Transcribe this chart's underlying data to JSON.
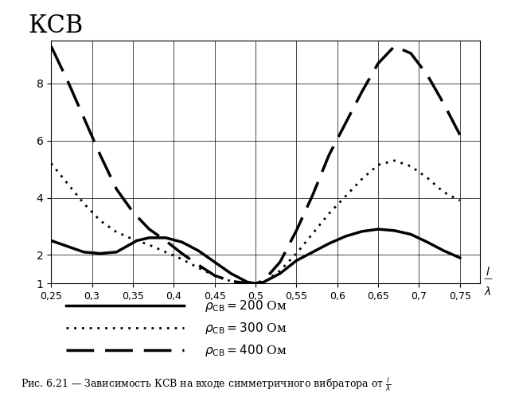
{
  "title": "КСВ",
  "xlim": [
    0.25,
    0.775
  ],
  "ylim": [
    1.0,
    9.5
  ],
  "xticks": [
    0.25,
    0.3,
    0.35,
    0.4,
    0.45,
    0.5,
    0.55,
    0.6,
    0.65,
    0.7,
    0.75
  ],
  "xtick_labels": [
    "0,25",
    "0,3",
    "0,35",
    "0,4",
    "0,45",
    "0,5",
    "0,55",
    "0,6",
    "0,65",
    "0,7",
    "0,75"
  ],
  "yticks": [
    1,
    2,
    4,
    6,
    8
  ],
  "background_color": "#ffffff",
  "curves": {
    "rho200": {
      "x": [
        0.25,
        0.27,
        0.29,
        0.31,
        0.33,
        0.355,
        0.37,
        0.39,
        0.41,
        0.43,
        0.45,
        0.47,
        0.49,
        0.5,
        0.51,
        0.53,
        0.55,
        0.57,
        0.59,
        0.61,
        0.63,
        0.65,
        0.67,
        0.69,
        0.71,
        0.73,
        0.75
      ],
      "y": [
        2.5,
        2.3,
        2.1,
        2.05,
        2.1,
        2.5,
        2.6,
        2.6,
        2.45,
        2.15,
        1.75,
        1.35,
        1.05,
        1.0,
        1.05,
        1.35,
        1.8,
        2.1,
        2.4,
        2.65,
        2.82,
        2.9,
        2.85,
        2.72,
        2.45,
        2.15,
        1.9
      ],
      "linewidth": 2.5,
      "label": "ρСВ = 200 Ом"
    },
    "rho300": {
      "x": [
        0.25,
        0.27,
        0.29,
        0.31,
        0.33,
        0.35,
        0.37,
        0.39,
        0.41,
        0.43,
        0.45,
        0.47,
        0.49,
        0.5,
        0.51,
        0.53,
        0.55,
        0.57,
        0.59,
        0.61,
        0.63,
        0.65,
        0.67,
        0.69,
        0.71,
        0.73,
        0.75
      ],
      "y": [
        5.2,
        4.5,
        3.8,
        3.2,
        2.8,
        2.55,
        2.35,
        2.1,
        1.85,
        1.55,
        1.28,
        1.08,
        1.01,
        1.0,
        1.04,
        1.45,
        2.05,
        2.75,
        3.45,
        4.05,
        4.65,
        5.15,
        5.3,
        5.1,
        4.7,
        4.2,
        3.9
      ],
      "linewidth": 2.0,
      "label": "ρСВ = 300 Ом"
    },
    "rho400": {
      "x": [
        0.25,
        0.27,
        0.29,
        0.31,
        0.33,
        0.35,
        0.37,
        0.39,
        0.41,
        0.43,
        0.45,
        0.47,
        0.49,
        0.5,
        0.51,
        0.53,
        0.55,
        0.57,
        0.59,
        0.61,
        0.63,
        0.65,
        0.67,
        0.69,
        0.71,
        0.73,
        0.75
      ],
      "y": [
        9.3,
        8.1,
        6.8,
        5.5,
        4.3,
        3.5,
        2.9,
        2.5,
        2.05,
        1.65,
        1.28,
        1.08,
        1.01,
        1.0,
        1.1,
        1.75,
        2.85,
        4.1,
        5.5,
        6.6,
        7.7,
        8.7,
        9.3,
        9.05,
        8.3,
        7.3,
        6.2
      ],
      "linewidth": 2.5,
      "label": "ρСВ = 400 Ом"
    }
  },
  "legend_labels": [
    "ρСВ = 200 Ом",
    "ρСВ = 300 Ом",
    "ρСВ = 400 Ом"
  ],
  "caption": "Рис. 6.21 — Зависимость КСВ на входе симметричного вибратора от"
}
